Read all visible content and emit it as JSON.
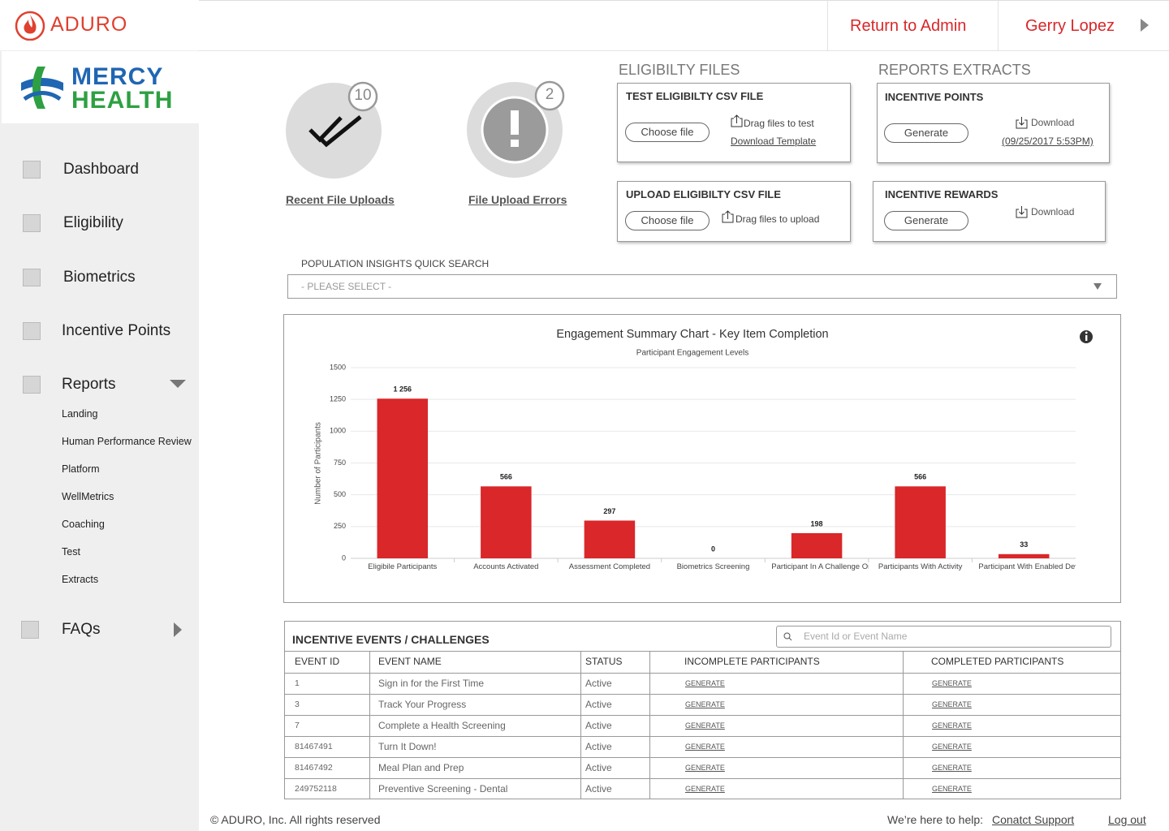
{
  "header": {
    "brand": "ADURO",
    "return_admin": "Return to Admin",
    "user": "Gerry Lopez"
  },
  "sidebar": {
    "client_logo": [
      "MERCY",
      "HEALTH"
    ],
    "nav": [
      "Dashboard",
      "Eligibility",
      "Biometrics",
      "Incentive Points",
      "Reports"
    ],
    "reports_sub": [
      "Landing",
      "Human Performance Review",
      "Platform",
      "WellMetrics",
      "Coaching",
      "Test",
      "Extracts"
    ],
    "faqs": "FAQs"
  },
  "uploads": {
    "recent": {
      "count": 10,
      "label": "Recent File Uploads"
    },
    "errors": {
      "count": 2,
      "label": "File Upload Errors"
    }
  },
  "eligibility": {
    "heading": "ELIGIBILTY FILES",
    "test": {
      "title": "TEST ELIGIBILTY CSV FILE",
      "button": "Choose file",
      "drag": "Drag files to test",
      "link": "Download Template"
    },
    "upload": {
      "title": "UPLOAD ELIGIBILTY CSV FILE",
      "button": "Choose file",
      "drag": "Drag files to upload"
    }
  },
  "reports": {
    "heading": "REPORTS EXTRACTS",
    "points": {
      "title": "INCENTIVE POINTS",
      "button": "Generate",
      "download": "Download",
      "date": "(09/25/2017 5:53PM)"
    },
    "rewards": {
      "title": "INCENTIVE REWARDS",
      "button": "Generate",
      "download": "Download"
    }
  },
  "search": {
    "label": "POPULATION INSIGHTS QUICK SEARCH",
    "placeholder": "- PLEASE SELECT -"
  },
  "chart_data": {
    "type": "bar",
    "title": "Engagement Summary Chart - Key Item Completion",
    "subtitle": "Participant Engagement Levels",
    "y_label": "Number of Participants",
    "categories": [
      "Eligibile Participants",
      "Accounts Activated",
      "Assessment Completed",
      "Biometrics Screening",
      "Participant In A Challenge Or Goal",
      "Participants With Activity",
      "Participant With Enabled Device"
    ],
    "values": [
      1256,
      566,
      297,
      0,
      198,
      566,
      33
    ],
    "value_labels": [
      "1 256",
      "566",
      "297",
      "0",
      "198",
      "566",
      "33"
    ],
    "color": "#d9272a",
    "ylim": [
      0,
      1500
    ],
    "yticks": [
      0,
      250,
      500,
      750,
      1000,
      1250,
      1500
    ],
    "grid": true
  },
  "table": {
    "title": "INCENTIVE EVENTS / CHALLENGES",
    "search_placeholder": "Event Id or Event Name",
    "columns": [
      "EVENT ID",
      "EVENT NAME",
      "STATUS",
      "INCOMPLETE PARTICIPANTS",
      "COMPLETED PARTICIPANTS"
    ],
    "rows": [
      [
        "1",
        "Sign in for the First Time",
        "Active",
        "GENERATE",
        "GENERATE"
      ],
      [
        "3",
        "Track Your Progress",
        "Active",
        "GENERATE",
        "GENERATE"
      ],
      [
        "7",
        "Complete a Health Screening",
        "Active",
        "GENERATE",
        "GENERATE"
      ],
      [
        "81467491",
        "Turn It Down!",
        "Active",
        "GENERATE",
        "GENERATE"
      ],
      [
        "81467492",
        "Meal Plan and Prep",
        "Active",
        "GENERATE",
        "GENERATE"
      ],
      [
        "249752118",
        "Preventive Screening - Dental",
        "Active",
        "GENERATE",
        "GENERATE"
      ]
    ]
  },
  "footer": {
    "copyright": "© ADURO, Inc. All rights reserved",
    "help": "We’re here to help:",
    "support": "Conatct Support",
    "logout": "Log out"
  }
}
